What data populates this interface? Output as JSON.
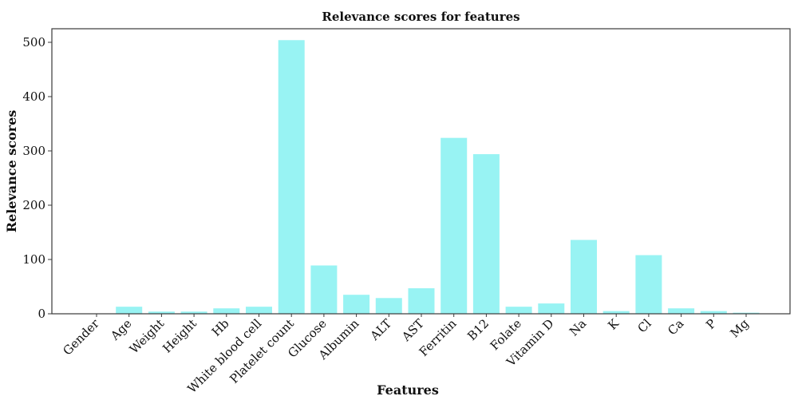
{
  "chart_data": {
    "type": "bar",
    "title": "Relevance scores for features",
    "xlabel": "Features",
    "ylabel": "Relevance scores",
    "categories": [
      "Gender",
      "Age",
      "Weight",
      "Height",
      "Hb",
      "White blood cell",
      "Platelet count",
      "Glucose",
      "Albumin",
      "ALT",
      "AST",
      "Ferritin",
      "B12",
      "Folate",
      "Vitamin D",
      "Na",
      "K",
      "Cl",
      "Ca",
      "P",
      "Mg"
    ],
    "values": [
      0,
      13,
      4,
      4,
      10,
      13,
      504,
      89,
      35,
      29,
      47,
      324,
      294,
      13,
      19,
      136,
      5,
      108,
      10,
      5,
      2
    ],
    "ylim": [
      0,
      525
    ],
    "yticks": [
      0,
      100,
      200,
      300,
      400,
      500
    ],
    "bar_color": "#98f3f3",
    "grid": false,
    "legend": "none"
  }
}
